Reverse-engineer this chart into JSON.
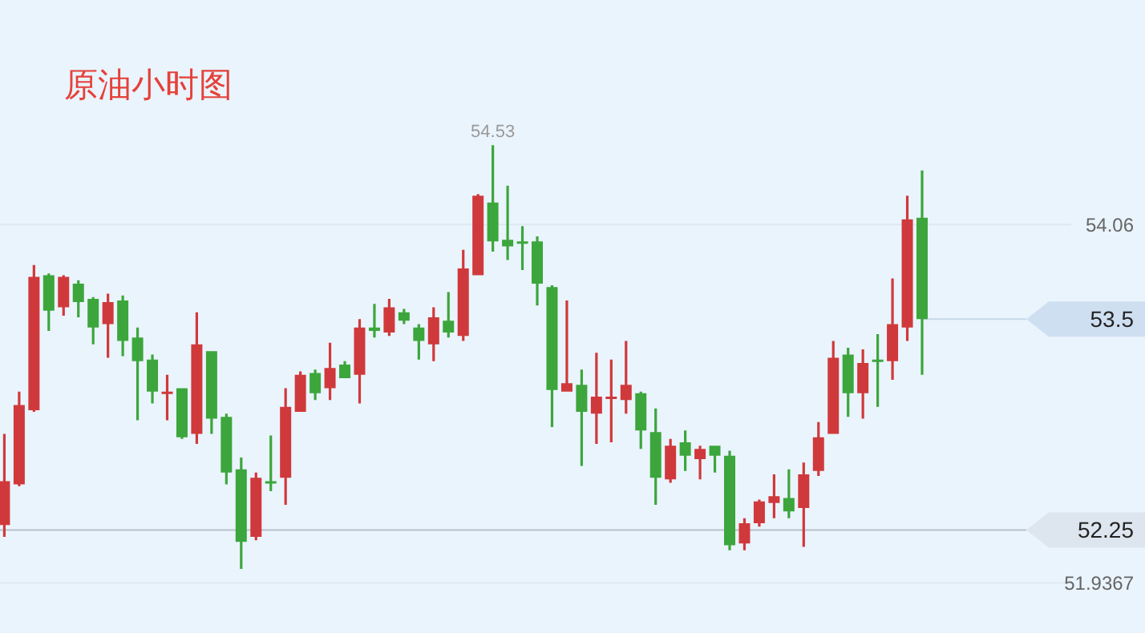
{
  "chart_data": {
    "type": "candlestick",
    "title": "原油小时图",
    "categories": [
      null,
      null,
      null,
      null,
      null,
      null,
      null,
      null,
      null,
      null,
      null,
      null,
      null,
      null,
      null,
      null,
      null,
      null,
      null,
      null,
      null,
      null,
      null,
      null,
      null,
      null,
      null,
      null,
      null,
      null,
      null,
      null,
      null,
      null,
      null,
      null,
      null,
      null,
      null,
      null,
      null,
      null,
      null,
      null,
      null,
      null,
      null,
      null,
      null,
      null,
      null,
      null,
      null,
      null,
      null,
      null,
      null,
      null,
      null,
      null,
      null,
      null,
      null,
      null,
      null,
      null,
      null,
      null,
      null
    ],
    "ohlc": [
      [
        52.28,
        52.82,
        52.21,
        52.54
      ],
      [
        52.52,
        53.07,
        52.51,
        52.99
      ],
      [
        52.96,
        53.82,
        52.95,
        53.75
      ],
      [
        53.76,
        53.77,
        53.43,
        53.55
      ],
      [
        53.57,
        53.76,
        53.52,
        53.75
      ],
      [
        53.71,
        53.73,
        53.51,
        53.6
      ],
      [
        53.62,
        53.63,
        53.35,
        53.45
      ],
      [
        53.47,
        53.65,
        53.27,
        53.6
      ],
      [
        53.61,
        53.64,
        53.28,
        53.37
      ],
      [
        53.39,
        53.45,
        52.9,
        53.25
      ],
      [
        53.26,
        53.29,
        53.0,
        53.07
      ],
      [
        53.06,
        53.17,
        52.9,
        53.07
      ],
      [
        53.09,
        53.09,
        52.79,
        52.8
      ],
      [
        52.82,
        53.54,
        52.76,
        53.35
      ],
      [
        53.31,
        53.31,
        52.82,
        52.91
      ],
      [
        52.92,
        52.94,
        52.52,
        52.59
      ],
      [
        52.61,
        52.68,
        52.02,
        52.18
      ],
      [
        52.21,
        52.59,
        52.19,
        52.56
      ],
      [
        52.54,
        52.81,
        52.48,
        52.53
      ],
      [
        52.56,
        53.09,
        52.4,
        52.98
      ],
      [
        52.95,
        53.19,
        52.95,
        53.17
      ],
      [
        53.18,
        53.2,
        53.02,
        53.06
      ],
      [
        53.09,
        53.36,
        53.02,
        53.21
      ],
      [
        53.23,
        53.25,
        53.15,
        53.15
      ],
      [
        53.17,
        53.5,
        53.0,
        53.45
      ],
      [
        53.45,
        53.59,
        53.39,
        53.43
      ],
      [
        53.42,
        53.62,
        53.4,
        53.57
      ],
      [
        53.54,
        53.56,
        53.47,
        53.49
      ],
      [
        53.45,
        53.47,
        53.26,
        53.37
      ],
      [
        53.35,
        53.57,
        53.25,
        53.51
      ],
      [
        53.49,
        53.66,
        53.39,
        53.42
      ],
      [
        53.4,
        53.91,
        53.37,
        53.8
      ],
      [
        53.76,
        54.24,
        53.76,
        54.23
      ],
      [
        54.19,
        54.53,
        53.9,
        53.96
      ],
      [
        53.97,
        54.29,
        53.85,
        53.93
      ],
      [
        53.96,
        54.05,
        53.79,
        53.95
      ],
      [
        53.96,
        53.99,
        53.58,
        53.71
      ],
      [
        53.69,
        53.7,
        52.86,
        53.08
      ],
      [
        53.07,
        53.61,
        53.07,
        53.12
      ],
      [
        53.11,
        53.2,
        52.63,
        52.95
      ],
      [
        52.94,
        53.3,
        52.76,
        53.04
      ],
      [
        53.03,
        53.26,
        52.77,
        53.04
      ],
      [
        53.02,
        53.37,
        52.94,
        53.11
      ],
      [
        53.06,
        53.07,
        52.73,
        52.84
      ],
      [
        52.83,
        52.97,
        52.4,
        52.56
      ],
      [
        52.55,
        52.79,
        52.53,
        52.75
      ],
      [
        52.77,
        52.84,
        52.6,
        52.69
      ],
      [
        52.67,
        52.75,
        52.55,
        52.73
      ],
      [
        52.75,
        52.75,
        52.59,
        52.69
      ],
      [
        52.69,
        52.72,
        52.13,
        52.16
      ],
      [
        52.17,
        52.32,
        52.13,
        52.29
      ],
      [
        52.29,
        52.43,
        52.27,
        52.42
      ],
      [
        52.41,
        52.58,
        52.32,
        52.45
      ],
      [
        52.44,
        52.61,
        52.32,
        52.36
      ],
      [
        52.38,
        52.65,
        52.15,
        52.58
      ],
      [
        52.6,
        52.89,
        52.57,
        52.8
      ],
      [
        52.82,
        53.37,
        52.82,
        53.27
      ],
      [
        53.29,
        53.33,
        52.92,
        53.06
      ],
      [
        53.06,
        53.32,
        52.91,
        53.24
      ],
      [
        53.26,
        53.41,
        52.98,
        53.25
      ],
      [
        53.25,
        53.74,
        53.14,
        53.47
      ],
      [
        53.45,
        54.23,
        53.37,
        54.09
      ],
      [
        54.1,
        54.38,
        53.17,
        53.5
      ],
      null,
      null,
      null,
      null,
      null,
      null
    ],
    "colors": [
      "#d0393b",
      "#d0393b",
      "#d0393b",
      "#3ca63c",
      "#d0393b",
      "#3ca63c",
      "#3ca63c",
      "#d0393b",
      "#3ca63c",
      "#3ca63c",
      "#3ca63c",
      "#d0393b",
      "#3ca63c",
      "#d0393b",
      "#3ca63c",
      "#3ca63c",
      "#3ca63c",
      "#d0393b",
      "#3ca63c",
      "#d0393b",
      "#d0393b",
      "#3ca63c",
      "#d0393b",
      "#3ca63c",
      "#d0393b",
      "#3ca63c",
      "#d0393b",
      "#3ca63c",
      "#3ca63c",
      "#d0393b",
      "#3ca63c",
      "#d0393b",
      "#d0393b",
      "#3ca63c",
      "#3ca63c",
      "#3ca63c",
      "#3ca63c",
      "#3ca63c",
      "#d0393b",
      "#3ca63c",
      "#d0393b",
      "#d0393b",
      "#d0393b",
      "#3ca63c",
      "#3ca63c",
      "#d0393b",
      "#3ca63c",
      "#d0393b",
      "#3ca63c",
      "#3ca63c",
      "#d0393b",
      "#d0393b",
      "#d0393b",
      "#3ca63c",
      "#d0393b",
      "#d0393b",
      "#d0393b",
      "#3ca63c",
      "#d0393b",
      "#3ca63c",
      "#d0393b",
      "#d0393b",
      "#3ca63c",
      null,
      null,
      null,
      null,
      null,
      null
    ],
    "ylim": [
      51.64,
      55.39
    ],
    "yticks": [
      54.06,
      51.9367
    ],
    "grid": "y",
    "tick_labels": "y",
    "ref_lines": [
      {
        "axis": "y",
        "value": 53.5,
        "label": "53.5",
        "color": "#c8d8e8"
      },
      {
        "axis": "y",
        "value": 52.25,
        "label": "52.25",
        "color": "#b8bfc7"
      }
    ],
    "annotations": [
      "54.53"
    ]
  }
}
